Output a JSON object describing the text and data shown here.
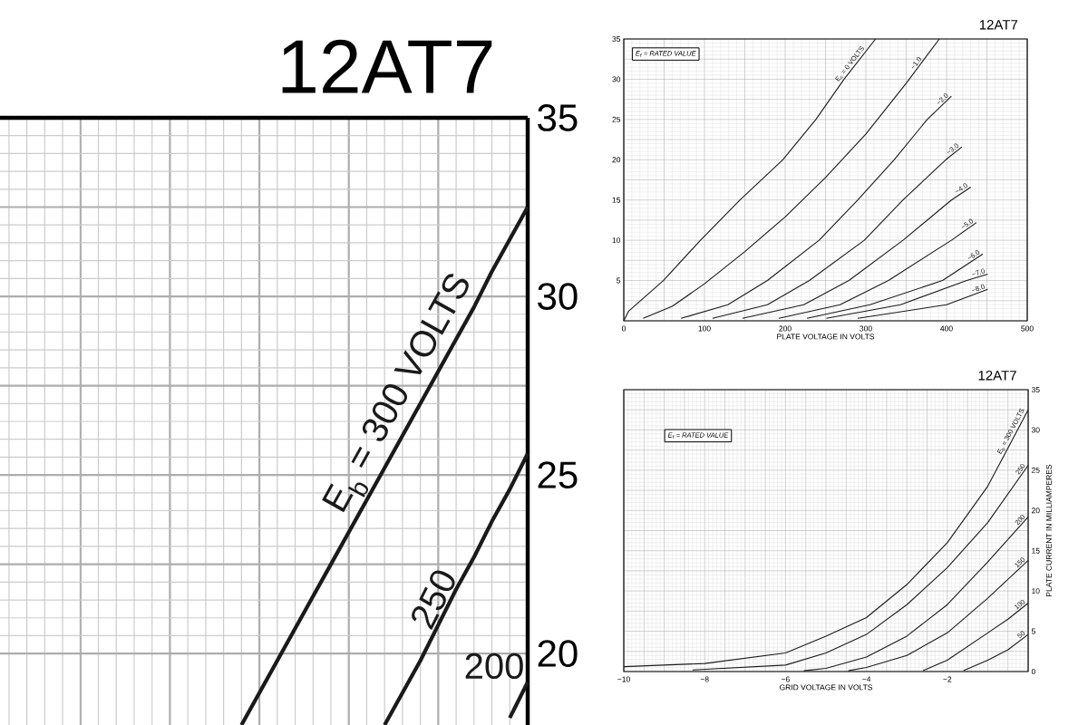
{
  "chart_data": [
    {
      "type": "line",
      "title": "12AT7",
      "ylim": [
        18,
        35
      ],
      "grid": true,
      "tick_labels": "y",
      "categories": [
        null,
        null,
        null,
        null,
        null,
        null,
        null,
        null,
        null,
        null,
        null,
        null,
        null,
        null,
        null,
        null,
        null,
        null,
        null,
        null,
        null,
        null,
        null,
        null,
        null,
        null,
        null,
        null,
        null,
        null
      ],
      "yticks": [
        20,
        {
          "value": 22.5,
          "label": null
        },
        25,
        {
          "value": 27.5,
          "label": null
        },
        30,
        {
          "value": 32.5,
          "label": null
        },
        35
      ],
      "series": [
        {
          "name": "E$_{b}$ = 300 VOLTS",
          "color": "#1a1a1a",
          "values": [
            null,
            null,
            null,
            null,
            null,
            null,
            null,
            null,
            null,
            null,
            null,
            null,
            null,
            18.0,
            18.9,
            19.8,
            20.7,
            21.6,
            22.5,
            23.4,
            24.3,
            25.2,
            26.1,
            27.0,
            27.9,
            28.8,
            29.7,
            30.7,
            31.6,
            32.5
          ]
        },
        {
          "name": "250",
          "color": "#1a1a1a",
          "values": [
            null,
            null,
            null,
            null,
            null,
            null,
            null,
            null,
            null,
            null,
            null,
            null,
            null,
            null,
            null,
            null,
            null,
            null,
            null,
            null,
            null,
            18.0,
            18.9,
            19.8,
            20.8,
            21.8,
            22.7,
            23.7,
            24.6,
            25.6
          ]
        },
        {
          "name": "200",
          "color": "#1a1a1a",
          "values": [
            null,
            null,
            null,
            null,
            null,
            null,
            null,
            null,
            null,
            null,
            null,
            null,
            null,
            null,
            null,
            null,
            null,
            null,
            null,
            null,
            null,
            null,
            null,
            null,
            null,
            null,
            null,
            null,
            18.2,
            19.2
          ]
        }
      ]
    },
    {
      "type": "line",
      "title": "12AT7",
      "xlabel": "PLATE VOLTAGE IN VOLTS",
      "annotations": [
        "E$_{f}$ = RATED VALUE"
      ],
      "xlim": [
        0,
        500
      ],
      "ylim": [
        0,
        35
      ],
      "grid": true,
      "xticks": [
        0,
        {
          "value": 50,
          "label": null
        },
        100,
        {
          "value": 150,
          "label": null
        },
        200,
        {
          "value": 250,
          "label": null
        },
        300,
        {
          "value": 350,
          "label": null
        },
        400,
        {
          "value": 450,
          "label": null
        },
        500
      ],
      "yticks": [
        {
          "value": 0,
          "label": null
        },
        {
          "value": 2.5,
          "label": null
        },
        5,
        {
          "value": 7.5,
          "label": null
        },
        10,
        {
          "value": 12.5,
          "label": null
        },
        15,
        {
          "value": 17.5,
          "label": null
        },
        20,
        {
          "value": 22.5,
          "label": null
        },
        25,
        {
          "value": 27.5,
          "label": null
        },
        30,
        {
          "value": 32.5,
          "label": null
        },
        35
      ],
      "series": [
        {
          "name": "E$_{c}$ = 0 VOLTS",
          "color": "#1a1a1a",
          "x": [
            0,
            6,
            49,
            95,
            144,
            197,
            238,
            273,
            312
          ],
          "values": [
            0,
            1.2,
            5,
            10,
            15,
            20,
            25,
            30,
            35
          ]
        },
        {
          "name": "−1.0",
          "color": "#1a1a1a",
          "x": [
            24,
            60,
            100,
            150,
            200,
            250,
            300,
            350,
            391
          ],
          "values": [
            0.3,
            1.8,
            4.6,
            8.6,
            12.9,
            17.8,
            23.2,
            29.5,
            35
          ]
        },
        {
          "name": "−2.0",
          "color": "#1a1a1a",
          "x": [
            71,
            129,
            178,
            242,
            290,
            335,
            376,
            406
          ],
          "values": [
            0.3,
            2,
            5,
            10,
            15,
            20,
            25,
            27.9
          ]
        },
        {
          "name": "−3.0",
          "color": "#1a1a1a",
          "x": [
            110,
            178,
            230,
            298,
            346,
            399,
            419
          ],
          "values": [
            0.3,
            2,
            5,
            10,
            15,
            20,
            21.6
          ]
        },
        {
          "name": "−4.0",
          "color": "#1a1a1a",
          "x": [
            147,
            223,
            279,
            346,
            406,
            430
          ],
          "values": [
            0.3,
            2,
            5,
            10,
            15,
            16.6
          ]
        },
        {
          "name": "−5.0",
          "color": "#1a1a1a",
          "x": [
            192,
            268,
            328,
            406,
            437
          ],
          "values": [
            0.3,
            2,
            5,
            10,
            12.2
          ]
        },
        {
          "name": "−6.0",
          "color": "#1a1a1a",
          "x": [
            227,
            305,
            395,
            445
          ],
          "values": [
            0.3,
            2,
            5,
            8.3
          ]
        },
        {
          "name": "−7.0",
          "color": "#1a1a1a",
          "x": [
            251,
            343,
            425,
            451
          ],
          "values": [
            0.3,
            2,
            5,
            5.8
          ]
        },
        {
          "name": "−8.0",
          "color": "#1a1a1a",
          "x": [
            290,
            400,
            451
          ],
          "values": [
            0.3,
            2,
            3.9
          ]
        }
      ]
    },
    {
      "type": "line",
      "title": "12AT7",
      "xlabel": "GRID VOLTAGE IN VOLTS",
      "ylabel": "PLATE CURRENT IN MILLIAMPERES",
      "annotations": [
        "E$_{f}$ = RATED VALUE"
      ],
      "xlim": [
        -10,
        0
      ],
      "ylim": [
        0,
        35
      ],
      "grid": true,
      "xticks": [
        {
          "value": -10,
          "label": "−10"
        },
        {
          "value": -9.5,
          "label": null
        },
        {
          "value": -9,
          "label": null
        },
        {
          "value": -8.5,
          "label": null
        },
        {
          "value": -8,
          "label": "−8"
        },
        {
          "value": -7.5,
          "label": null
        },
        {
          "value": -7,
          "label": null
        },
        {
          "value": -6.5,
          "label": null
        },
        {
          "value": -6,
          "label": "−6"
        },
        {
          "value": -5.5,
          "label": null
        },
        {
          "value": -5,
          "label": null
        },
        {
          "value": -4.5,
          "label": null
        },
        {
          "value": -4,
          "label": "−4"
        },
        {
          "value": -3.5,
          "label": null
        },
        {
          "value": -3,
          "label": null
        },
        {
          "value": -2.5,
          "label": null
        },
        {
          "value": -2,
          "label": "−2"
        },
        {
          "value": -1.5,
          "label": null
        },
        {
          "value": -1,
          "label": null
        },
        {
          "value": -0.5,
          "label": null
        },
        {
          "value": 0,
          "label": null
        }
      ],
      "yticks": [
        0,
        {
          "value": 2.5,
          "label": null
        },
        5,
        {
          "value": 7.5,
          "label": null
        },
        10,
        {
          "value": 12.5,
          "label": null
        },
        15,
        {
          "value": 17.5,
          "label": null
        },
        20,
        {
          "value": 22.5,
          "label": null
        },
        25,
        {
          "value": 27.5,
          "label": null
        },
        30,
        {
          "value": 32.5,
          "label": null
        },
        35
      ],
      "series": [
        {
          "name": "E$_{b}$ = 300 VOLTS",
          "color": "#1a1a1a",
          "x": [
            -10,
            -8,
            -6,
            -5,
            -4,
            -3,
            -2,
            -1,
            0
          ],
          "values": [
            0.6,
            1.0,
            2.3,
            4.4,
            6.7,
            10.8,
            16,
            23,
            32.5
          ]
        },
        {
          "name": "250",
          "color": "#1a1a1a",
          "x": [
            -8.3,
            -6,
            -5,
            -4,
            -3,
            -2,
            -1,
            0
          ],
          "values": [
            0.2,
            0.8,
            2.3,
            4.6,
            8.3,
            12.9,
            18.5,
            25.6
          ]
        },
        {
          "name": "200",
          "color": "#1a1a1a",
          "x": [
            -5.55,
            -5,
            -4,
            -3,
            -2,
            -1,
            0
          ],
          "values": [
            0.1,
            0.4,
            1.8,
            4.4,
            8.3,
            13.6,
            19.2
          ]
        },
        {
          "name": "150",
          "color": "#1a1a1a",
          "x": [
            -4.45,
            -4,
            -3,
            -2,
            -1,
            0
          ],
          "values": [
            0.1,
            0.5,
            2,
            4.8,
            9.1,
            13.8
          ]
        },
        {
          "name": "100",
          "color": "#1a1a1a",
          "x": [
            -2.6,
            -2,
            -1,
            -0.5,
            0
          ],
          "values": [
            0.1,
            1.4,
            4.8,
            6.5,
            8.5
          ]
        },
        {
          "name": "50",
          "color": "#1a1a1a",
          "x": [
            -1.6,
            -1,
            -0.5,
            0
          ],
          "values": [
            0.1,
            1.4,
            2.7,
            4.6
          ]
        }
      ]
    }
  ]
}
